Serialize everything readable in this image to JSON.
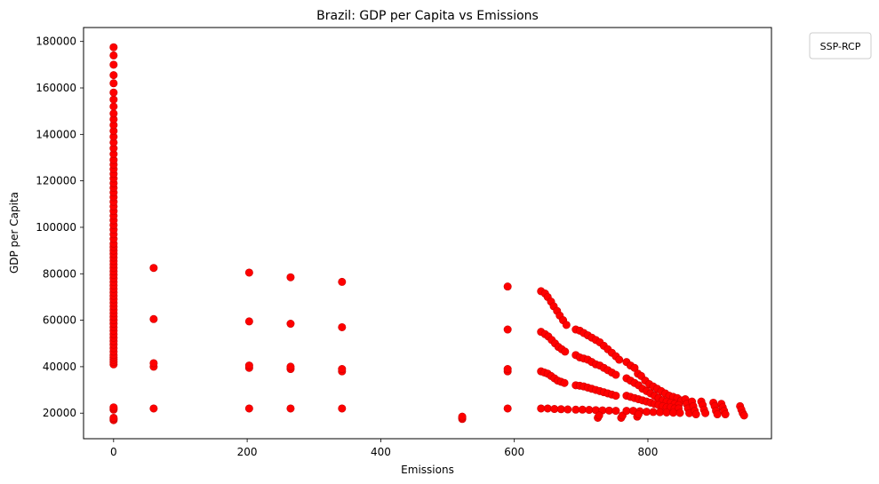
{
  "chart_data": {
    "type": "scatter",
    "title": "Brazil: GDP per Capita vs Emissions",
    "xlabel": "Emissions",
    "ylabel": "GDP per Capita",
    "xlim": [
      -45,
      985
    ],
    "ylim": [
      9000,
      186000
    ],
    "xticks": [
      0,
      200,
      400,
      600,
      800
    ],
    "yticks": [
      20000,
      40000,
      60000,
      80000,
      100000,
      120000,
      140000,
      160000,
      180000
    ],
    "grid": false,
    "legend": {
      "title": "SSP-RCP",
      "placement": "outside-top-right",
      "entries": []
    },
    "point_color": "#ff0000",
    "point_edge_color": "#cc0000",
    "series": [
      {
        "points": [
          [
            0,
            17000
          ],
          [
            0,
            17500
          ],
          [
            0,
            18000
          ],
          [
            0,
            21500
          ],
          [
            0,
            22000
          ],
          [
            0,
            22500
          ],
          [
            0,
            41000
          ],
          [
            0,
            42000
          ],
          [
            0,
            43000
          ],
          [
            0,
            44000
          ],
          [
            0,
            45000
          ],
          [
            0,
            46500
          ],
          [
            0,
            48000
          ],
          [
            0,
            49500
          ],
          [
            0,
            51000
          ],
          [
            0,
            52500
          ],
          [
            0,
            54000
          ],
          [
            0,
            55500
          ],
          [
            0,
            57000
          ],
          [
            0,
            58500
          ],
          [
            0,
            60000
          ],
          [
            0,
            61500
          ],
          [
            0,
            63000
          ],
          [
            0,
            64500
          ],
          [
            0,
            66000
          ],
          [
            0,
            67500
          ],
          [
            0,
            69000
          ],
          [
            0,
            70500
          ],
          [
            0,
            72000
          ],
          [
            0,
            73500
          ],
          [
            0,
            75000
          ],
          [
            0,
            76500
          ],
          [
            0,
            78000
          ],
          [
            0,
            79500
          ],
          [
            0,
            81000
          ],
          [
            0,
            82500
          ],
          [
            0,
            84000
          ],
          [
            0,
            85500
          ],
          [
            0,
            87000
          ],
          [
            0,
            88500
          ],
          [
            0,
            90000
          ],
          [
            0,
            91500
          ],
          [
            0,
            93000
          ],
          [
            0,
            95000
          ],
          [
            0,
            97000
          ],
          [
            0,
            99000
          ],
          [
            0,
            101000
          ],
          [
            0,
            103000
          ],
          [
            0,
            105000
          ],
          [
            0,
            107000
          ],
          [
            0,
            109000
          ],
          [
            0,
            111000
          ],
          [
            0,
            113000
          ],
          [
            0,
            115000
          ],
          [
            0,
            117000
          ],
          [
            0,
            119000
          ],
          [
            0,
            121000
          ],
          [
            0,
            123000
          ],
          [
            0,
            125000
          ],
          [
            0,
            127000
          ],
          [
            0,
            129000
          ],
          [
            0,
            131500
          ],
          [
            0,
            134000
          ],
          [
            0,
            136500
          ],
          [
            0,
            139000
          ],
          [
            0,
            141500
          ],
          [
            0,
            144000
          ],
          [
            0,
            146500
          ],
          [
            0,
            149000
          ],
          [
            0,
            152000
          ],
          [
            0,
            155000
          ],
          [
            0,
            158000
          ],
          [
            0,
            162000
          ],
          [
            0,
            165500
          ],
          [
            0,
            170000
          ],
          [
            0,
            174000
          ],
          [
            0,
            177500
          ],
          [
            60,
            22000
          ],
          [
            60,
            40000
          ],
          [
            60,
            41500
          ],
          [
            60,
            60500
          ],
          [
            60,
            82500
          ],
          [
            203,
            22000
          ],
          [
            203,
            39500
          ],
          [
            203,
            40500
          ],
          [
            203,
            59500
          ],
          [
            203,
            80500
          ],
          [
            265,
            22000
          ],
          [
            265,
            39000
          ],
          [
            265,
            40000
          ],
          [
            265,
            58500
          ],
          [
            265,
            78500
          ],
          [
            342,
            22000
          ],
          [
            342,
            38000
          ],
          [
            342,
            39000
          ],
          [
            342,
            57000
          ],
          [
            342,
            76500
          ],
          [
            522,
            17500
          ],
          [
            522,
            18000
          ],
          [
            522,
            18500
          ],
          [
            590,
            22000
          ],
          [
            590,
            38000
          ],
          [
            590,
            39000
          ],
          [
            590,
            56000
          ],
          [
            590,
            74500
          ],
          [
            640,
            72500
          ],
          [
            646,
            71500
          ],
          [
            650,
            70000
          ],
          [
            655,
            68000
          ],
          [
            659,
            66000
          ],
          [
            664,
            64000
          ],
          [
            668,
            62000
          ],
          [
            673,
            60000
          ],
          [
            678,
            58000
          ],
          [
            640,
            55000
          ],
          [
            646,
            54000
          ],
          [
            651,
            53000
          ],
          [
            656,
            51500
          ],
          [
            661,
            50000
          ],
          [
            666,
            48500
          ],
          [
            671,
            47500
          ],
          [
            676,
            46500
          ],
          [
            640,
            38000
          ],
          [
            645,
            37500
          ],
          [
            650,
            37000
          ],
          [
            655,
            36000
          ],
          [
            660,
            35000
          ],
          [
            665,
            34000
          ],
          [
            670,
            33500
          ],
          [
            675,
            33000
          ],
          [
            640,
            22000
          ],
          [
            650,
            22000
          ],
          [
            660,
            21800
          ],
          [
            670,
            21700
          ],
          [
            680,
            21600
          ],
          [
            692,
            56000
          ],
          [
            698,
            55500
          ],
          [
            704,
            54500
          ],
          [
            710,
            53500
          ],
          [
            716,
            52500
          ],
          [
            722,
            51500
          ],
          [
            728,
            50500
          ],
          [
            734,
            49000
          ],
          [
            740,
            47500
          ],
          [
            746,
            46000
          ],
          [
            752,
            44500
          ],
          [
            757,
            43000
          ],
          [
            692,
            45000
          ],
          [
            698,
            44000
          ],
          [
            704,
            43500
          ],
          [
            710,
            43000
          ],
          [
            716,
            42000
          ],
          [
            722,
            41000
          ],
          [
            728,
            40500
          ],
          [
            734,
            39500
          ],
          [
            740,
            38500
          ],
          [
            746,
            37500
          ],
          [
            752,
            36500
          ],
          [
            692,
            32000
          ],
          [
            698,
            31800
          ],
          [
            704,
            31500
          ],
          [
            710,
            31000
          ],
          [
            716,
            30500
          ],
          [
            722,
            30000
          ],
          [
            728,
            29500
          ],
          [
            734,
            29000
          ],
          [
            740,
            28500
          ],
          [
            746,
            28000
          ],
          [
            752,
            27500
          ],
          [
            692,
            21500
          ],
          [
            702,
            21500
          ],
          [
            712,
            21400
          ],
          [
            722,
            21300
          ],
          [
            732,
            21200
          ],
          [
            742,
            21100
          ],
          [
            752,
            21000
          ],
          [
            725,
            18000
          ],
          [
            727,
            19000
          ],
          [
            760,
            18000
          ],
          [
            762,
            19000
          ],
          [
            768,
            42000
          ],
          [
            774,
            40500
          ],
          [
            780,
            39500
          ],
          [
            785,
            37000
          ],
          [
            790,
            36000
          ],
          [
            796,
            34000
          ],
          [
            802,
            32500
          ],
          [
            808,
            31500
          ],
          [
            814,
            30500
          ],
          [
            820,
            29500
          ],
          [
            826,
            28500
          ],
          [
            832,
            27500
          ],
          [
            838,
            27000
          ],
          [
            844,
            26500
          ],
          [
            850,
            25500
          ],
          [
            768,
            35000
          ],
          [
            774,
            34000
          ],
          [
            780,
            33000
          ],
          [
            786,
            32000
          ],
          [
            792,
            30500
          ],
          [
            798,
            29500
          ],
          [
            804,
            28500
          ],
          [
            810,
            27500
          ],
          [
            816,
            26500
          ],
          [
            822,
            25500
          ],
          [
            828,
            25000
          ],
          [
            834,
            24500
          ],
          [
            840,
            24000
          ],
          [
            846,
            23500
          ],
          [
            768,
            27500
          ],
          [
            774,
            27000
          ],
          [
            780,
            26500
          ],
          [
            786,
            26000
          ],
          [
            792,
            25500
          ],
          [
            798,
            25000
          ],
          [
            804,
            24500
          ],
          [
            810,
            24000
          ],
          [
            816,
            23500
          ],
          [
            822,
            23000
          ],
          [
            828,
            22500
          ],
          [
            834,
            22500
          ],
          [
            840,
            22000
          ],
          [
            846,
            22000
          ],
          [
            768,
            21000
          ],
          [
            778,
            21000
          ],
          [
            788,
            20800
          ],
          [
            798,
            20600
          ],
          [
            808,
            20500
          ],
          [
            818,
            20400
          ],
          [
            828,
            20300
          ],
          [
            838,
            20200
          ],
          [
            848,
            20100
          ],
          [
            784,
            18500
          ],
          [
            786,
            19500
          ],
          [
            856,
            26000
          ],
          [
            858,
            24000
          ],
          [
            860,
            22000
          ],
          [
            862,
            20000
          ],
          [
            866,
            25000
          ],
          [
            868,
            23000
          ],
          [
            870,
            21000
          ],
          [
            872,
            19500
          ],
          [
            880,
            25000
          ],
          [
            882,
            23500
          ],
          [
            884,
            21500
          ],
          [
            886,
            20000
          ],
          [
            898,
            24500
          ],
          [
            900,
            23000
          ],
          [
            902,
            21000
          ],
          [
            904,
            19500
          ],
          [
            910,
            24000
          ],
          [
            912,
            22500
          ],
          [
            914,
            21000
          ],
          [
            916,
            19500
          ],
          [
            938,
            23000
          ],
          [
            940,
            21500
          ],
          [
            942,
            20000
          ],
          [
            944,
            19000
          ]
        ]
      }
    ]
  }
}
